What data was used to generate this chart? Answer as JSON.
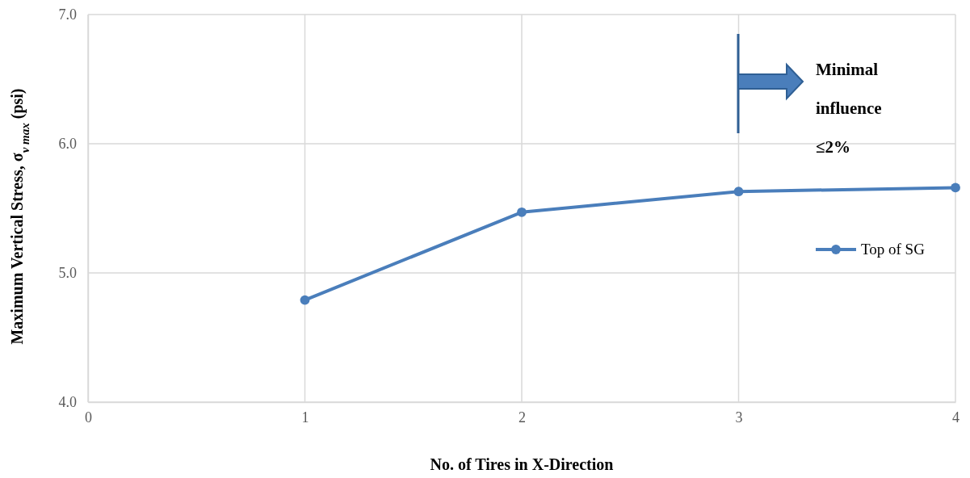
{
  "chart_data": {
    "type": "line",
    "xlabel": "No. of Tires in X-Direction",
    "ylabel": "Maximum Vertical Stress, σ$_{v max}$ (psi)",
    "x": [
      1,
      2,
      3,
      4
    ],
    "series": [
      {
        "name": "Top of SG",
        "color": "#4a7ebb",
        "values": [
          4.79,
          5.47,
          5.63,
          5.66
        ]
      }
    ],
    "xlim": [
      0,
      4
    ],
    "xticks": [
      0,
      1,
      2,
      3,
      4
    ],
    "ylim": [
      4,
      7
    ],
    "yticks": [
      {
        "value": 4,
        "label": "4.0"
      },
      {
        "value": 5,
        "label": "5.0"
      },
      {
        "value": 6,
        "label": "6.0"
      },
      {
        "value": 7,
        "label": "7.0"
      }
    ],
    "grid": true,
    "legend": "right",
    "marker": "circle",
    "line_style": "solid",
    "annotations": [
      "Minimal influence ≤2%"
    ]
  }
}
